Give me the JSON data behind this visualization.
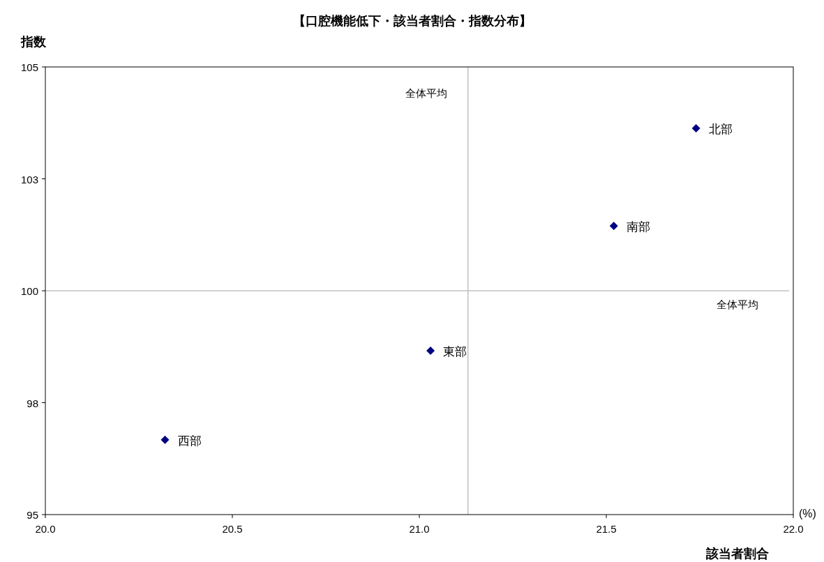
{
  "chart_data": {
    "type": "scatter",
    "title": "【口腔機能低下・該当者割合・指数分布】",
    "xlabel": "該当者割合",
    "ylabel": "指数",
    "annotations": [
      "(%)"
    ],
    "xlim": [
      20,
      22
    ],
    "xticks": [
      {
        "value": 20,
        "label": "20.0"
      },
      {
        "value": 20.5,
        "label": "20.5"
      },
      {
        "value": 21,
        "label": "21.0"
      },
      {
        "value": 21.5,
        "label": "21.5"
      },
      {
        "value": 22,
        "label": "22.0"
      }
    ],
    "ylim": [
      95,
      105
    ],
    "yticks": [
      95,
      {
        "value": 97.5,
        "label": "98"
      },
      100,
      {
        "value": 102.5,
        "label": "103"
      },
      105
    ],
    "marker": "diamond",
    "grid": false,
    "legend": false,
    "series": [
      {
        "name": "北部",
        "color": "#000080",
        "x": [
          21.74
        ],
        "values": [
          103.63
        ]
      },
      {
        "name": "南部",
        "color": "#000080",
        "x": [
          21.52
        ],
        "values": [
          101.45
        ]
      },
      {
        "name": "東部",
        "color": "#000080",
        "x": [
          21.03
        ],
        "values": [
          98.66
        ]
      },
      {
        "name": "西部",
        "color": "#000080",
        "x": [
          20.32
        ],
        "values": [
          96.67
        ]
      }
    ],
    "ref_lines": [
      {
        "axis": "x",
        "value": 21.13,
        "label": "全体平均",
        "color": "#c0c0c0"
      },
      {
        "axis": "y",
        "value": 100,
        "label": "全体平均",
        "color": "#c0c0c0"
      }
    ]
  }
}
